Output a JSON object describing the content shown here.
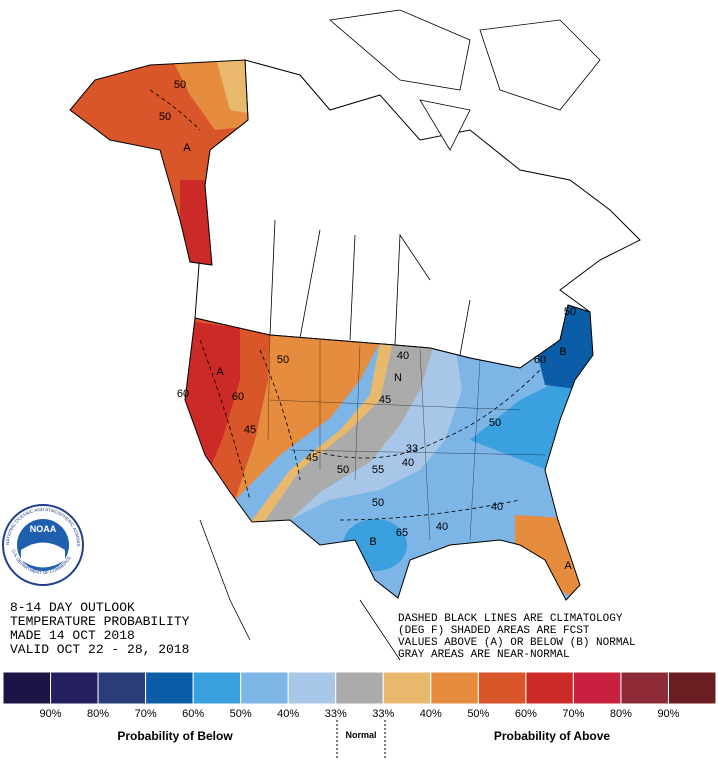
{
  "header": {
    "lines": [
      "8-14 DAY OUTLOOK",
      "TEMPERATURE PROBABILITY",
      "MADE  14 OCT 2018",
      "VALID  OCT 22 - 28, 2018"
    ]
  },
  "notes": [
    "DASHED BLACK LINES ARE CLIMATOLOGY",
    "(DEG F) SHADED AREAS ARE FCST",
    "VALUES ABOVE (A) OR BELOW (B) NORMAL",
    "GRAY AREAS ARE NEAR-NORMAL"
  ],
  "logo": {
    "text": "NOAA",
    "ring_top": "NATIONAL OCEANIC AND ATMOSPHERIC ADMINISTRATION",
    "ring_bottom": "U.S. DEPARTMENT OF COMMERCE"
  },
  "map_labels": [
    "A",
    "50",
    "50",
    "A",
    "60",
    "60",
    "50",
    "45",
    "N",
    "40",
    "45",
    "33",
    "40",
    "55",
    "50",
    "45",
    "B",
    "65",
    "50",
    "50",
    "B",
    "60",
    "40",
    "40",
    "A",
    "50"
  ],
  "legend": {
    "colors": [
      "#1b1446",
      "#24215e",
      "#2b3c7a",
      "#0c5da8",
      "#3aa0de",
      "#7cb5e6",
      "#a7c6e8",
      "#ababab",
      "#e8b86d",
      "#e58c3f",
      "#d9552a",
      "#cc2a27",
      "#c8203e",
      "#8e2a35",
      "#6b1e22"
    ],
    "labels": [
      "90%",
      "80%",
      "70%",
      "60%",
      "50%",
      "40%",
      "33%",
      "33%",
      "40%",
      "50%",
      "60%",
      "70%",
      "80%",
      "90%"
    ],
    "below": "Probability of Below",
    "normal": "Normal",
    "above": "Probability of Above"
  }
}
